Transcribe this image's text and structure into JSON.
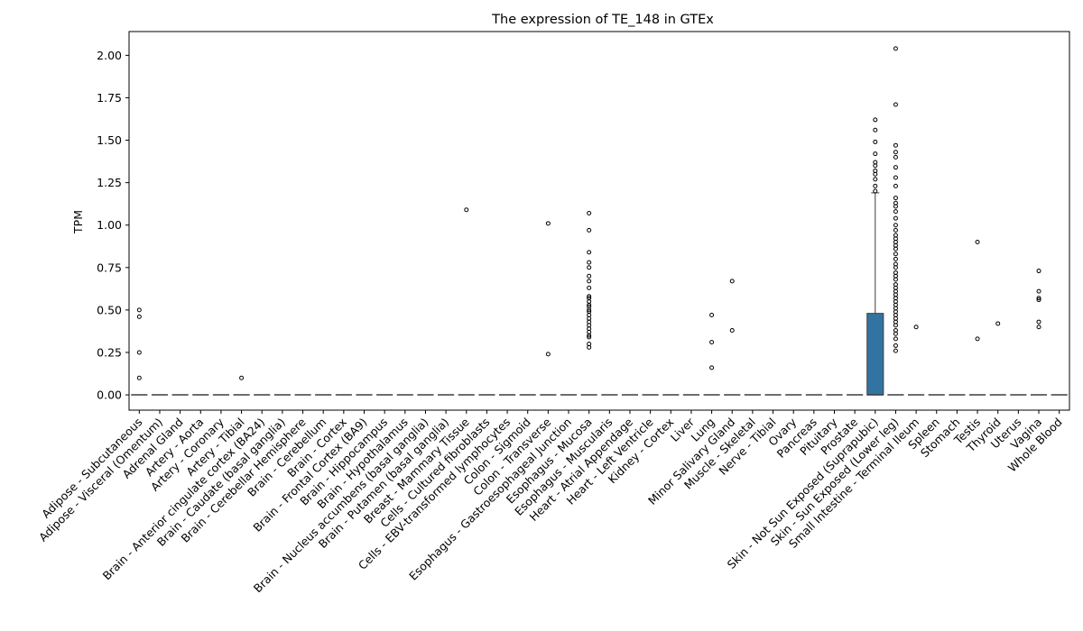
{
  "chart_data": {
    "type": "box",
    "title": "The expression of TE_148 in GTEx",
    "xlabel": "",
    "ylabel": "TPM",
    "ylim": [
      -0.09,
      2.14
    ],
    "yticks": [
      "0.00",
      "0.25",
      "0.50",
      "0.75",
      "1.00",
      "1.25",
      "1.50",
      "1.75",
      "2.00"
    ],
    "ytick_values": [
      0,
      0.25,
      0.5,
      0.75,
      1.0,
      1.25,
      1.5,
      1.75,
      2.0
    ],
    "box_color": "#3274a1",
    "categories": [
      "Adipose - Subcutaneous",
      "Adipose - Visceral (Omentum)",
      "Adrenal Gland",
      "Artery - Aorta",
      "Artery - Coronary",
      "Artery - Tibial",
      "Brain - Anterior cingulate cortex (BA24)",
      "Brain - Caudate (basal ganglia)",
      "Brain - Cerebellar Hemisphere",
      "Brain - Cerebellum",
      "Brain - Cortex",
      "Brain - Frontal Cortex (BA9)",
      "Brain - Hippocampus",
      "Brain - Hypothalamus",
      "Brain - Nucleus accumbens (basal ganglia)",
      "Brain - Putamen (basal ganglia)",
      "Breast - Mammary Tissue",
      "Cells - Cultured fibroblasts",
      "Cells - EBV-transformed lymphocytes",
      "Colon - Sigmoid",
      "Colon - Transverse",
      "Esophagus - Gastroesophageal Junction",
      "Esophagus - Mucosa",
      "Esophagus - Muscularis",
      "Heart - Atrial Appendage",
      "Heart - Left Ventricle",
      "Kidney - Cortex",
      "Liver",
      "Lung",
      "Minor Salivary Gland",
      "Muscle - Skeletal",
      "Nerve - Tibial",
      "Ovary",
      "Pancreas",
      "Pituitary",
      "Prostate",
      "Skin - Not Sun Exposed (Suprapubic)",
      "Skin - Sun Exposed (Lower leg)",
      "Small Intestine - Terminal Ileum",
      "Spleen",
      "Stomach",
      "Testis",
      "Thyroid",
      "Uterus",
      "Vagina",
      "Whole Blood"
    ],
    "boxes": [
      {
        "q1": 0,
        "median": 0,
        "q3": 0,
        "whisker_low": 0,
        "whisker_high": 0,
        "outliers": [
          0.1,
          0.25,
          0.46,
          0.5
        ]
      },
      {
        "q1": 0,
        "median": 0,
        "q3": 0,
        "whisker_low": 0,
        "whisker_high": 0,
        "outliers": []
      },
      {
        "q1": 0,
        "median": 0,
        "q3": 0,
        "whisker_low": 0,
        "whisker_high": 0,
        "outliers": []
      },
      {
        "q1": 0,
        "median": 0,
        "q3": 0,
        "whisker_low": 0,
        "whisker_high": 0,
        "outliers": []
      },
      {
        "q1": 0,
        "median": 0,
        "q3": 0,
        "whisker_low": 0,
        "whisker_high": 0,
        "outliers": []
      },
      {
        "q1": 0,
        "median": 0,
        "q3": 0,
        "whisker_low": 0,
        "whisker_high": 0,
        "outliers": [
          0.1
        ]
      },
      {
        "q1": 0,
        "median": 0,
        "q3": 0,
        "whisker_low": 0,
        "whisker_high": 0,
        "outliers": []
      },
      {
        "q1": 0,
        "median": 0,
        "q3": 0,
        "whisker_low": 0,
        "whisker_high": 0,
        "outliers": []
      },
      {
        "q1": 0,
        "median": 0,
        "q3": 0,
        "whisker_low": 0,
        "whisker_high": 0,
        "outliers": []
      },
      {
        "q1": 0,
        "median": 0,
        "q3": 0,
        "whisker_low": 0,
        "whisker_high": 0,
        "outliers": []
      },
      {
        "q1": 0,
        "median": 0,
        "q3": 0,
        "whisker_low": 0,
        "whisker_high": 0,
        "outliers": []
      },
      {
        "q1": 0,
        "median": 0,
        "q3": 0,
        "whisker_low": 0,
        "whisker_high": 0,
        "outliers": []
      },
      {
        "q1": 0,
        "median": 0,
        "q3": 0,
        "whisker_low": 0,
        "whisker_high": 0,
        "outliers": []
      },
      {
        "q1": 0,
        "median": 0,
        "q3": 0,
        "whisker_low": 0,
        "whisker_high": 0,
        "outliers": []
      },
      {
        "q1": 0,
        "median": 0,
        "q3": 0,
        "whisker_low": 0,
        "whisker_high": 0,
        "outliers": []
      },
      {
        "q1": 0,
        "median": 0,
        "q3": 0,
        "whisker_low": 0,
        "whisker_high": 0,
        "outliers": []
      },
      {
        "q1": 0,
        "median": 0,
        "q3": 0,
        "whisker_low": 0,
        "whisker_high": 0,
        "outliers": [
          1.09
        ]
      },
      {
        "q1": 0,
        "median": 0,
        "q3": 0,
        "whisker_low": 0,
        "whisker_high": 0,
        "outliers": []
      },
      {
        "q1": 0,
        "median": 0,
        "q3": 0,
        "whisker_low": 0,
        "whisker_high": 0,
        "outliers": []
      },
      {
        "q1": 0,
        "median": 0,
        "q3": 0,
        "whisker_low": 0,
        "whisker_high": 0,
        "outliers": []
      },
      {
        "q1": 0,
        "median": 0,
        "q3": 0,
        "whisker_low": 0,
        "whisker_high": 0,
        "outliers": [
          0.24,
          1.01
        ]
      },
      {
        "q1": 0,
        "median": 0,
        "q3": 0,
        "whisker_low": 0,
        "whisker_high": 0,
        "outliers": []
      },
      {
        "q1": 0,
        "median": 0,
        "q3": 0,
        "whisker_low": 0,
        "whisker_high": 0,
        "outliers": [
          0.28,
          0.3,
          0.34,
          0.35,
          0.37,
          0.39,
          0.41,
          0.43,
          0.45,
          0.47,
          0.49,
          0.5,
          0.52,
          0.53,
          0.55,
          0.57,
          0.58,
          0.63,
          0.67,
          0.7,
          0.75,
          0.78,
          0.84,
          0.97,
          1.07
        ]
      },
      {
        "q1": 0,
        "median": 0,
        "q3": 0,
        "whisker_low": 0,
        "whisker_high": 0,
        "outliers": []
      },
      {
        "q1": 0,
        "median": 0,
        "q3": 0,
        "whisker_low": 0,
        "whisker_high": 0,
        "outliers": []
      },
      {
        "q1": 0,
        "median": 0,
        "q3": 0,
        "whisker_low": 0,
        "whisker_high": 0,
        "outliers": []
      },
      {
        "q1": 0,
        "median": 0,
        "q3": 0,
        "whisker_low": 0,
        "whisker_high": 0,
        "outliers": []
      },
      {
        "q1": 0,
        "median": 0,
        "q3": 0,
        "whisker_low": 0,
        "whisker_high": 0,
        "outliers": []
      },
      {
        "q1": 0,
        "median": 0,
        "q3": 0,
        "whisker_low": 0,
        "whisker_high": 0,
        "outliers": [
          0.16,
          0.31,
          0.47
        ]
      },
      {
        "q1": 0,
        "median": 0,
        "q3": 0,
        "whisker_low": 0,
        "whisker_high": 0,
        "outliers": [
          0.38,
          0.67
        ]
      },
      {
        "q1": 0,
        "median": 0,
        "q3": 0,
        "whisker_low": 0,
        "whisker_high": 0,
        "outliers": []
      },
      {
        "q1": 0,
        "median": 0,
        "q3": 0,
        "whisker_low": 0,
        "whisker_high": 0,
        "outliers": []
      },
      {
        "q1": 0,
        "median": 0,
        "q3": 0,
        "whisker_low": 0,
        "whisker_high": 0,
        "outliers": []
      },
      {
        "q1": 0,
        "median": 0,
        "q3": 0,
        "whisker_low": 0,
        "whisker_high": 0,
        "outliers": []
      },
      {
        "q1": 0,
        "median": 0,
        "q3": 0,
        "whisker_low": 0,
        "whisker_high": 0,
        "outliers": []
      },
      {
        "q1": 0,
        "median": 0,
        "q3": 0,
        "whisker_low": 0,
        "whisker_high": 0,
        "outliers": []
      },
      {
        "q1": 0,
        "median": 0,
        "q3": 0.48,
        "whisker_low": 0,
        "whisker_high": 1.19,
        "outliers": [
          1.2,
          1.23,
          1.27,
          1.3,
          1.32,
          1.35,
          1.37,
          1.42,
          1.49,
          1.56,
          1.62
        ]
      },
      {
        "q1": 0,
        "median": 0,
        "q3": 0,
        "whisker_low": 0,
        "whisker_high": 0,
        "outliers": [
          0.26,
          0.29,
          0.33,
          0.36,
          0.38,
          0.41,
          0.43,
          0.45,
          0.47,
          0.49,
          0.51,
          0.53,
          0.55,
          0.57,
          0.59,
          0.61,
          0.63,
          0.65,
          0.68,
          0.7,
          0.72,
          0.75,
          0.77,
          0.8,
          0.83,
          0.86,
          0.88,
          0.9,
          0.92,
          0.94,
          0.97,
          1.0,
          1.04,
          1.08,
          1.11,
          1.13,
          1.16,
          1.23,
          1.28,
          1.34,
          1.4,
          1.43,
          1.47,
          1.71,
          2.04
        ]
      },
      {
        "q1": 0,
        "median": 0,
        "q3": 0,
        "whisker_low": 0,
        "whisker_high": 0,
        "outliers": [
          0.4
        ]
      },
      {
        "q1": 0,
        "median": 0,
        "q3": 0,
        "whisker_low": 0,
        "whisker_high": 0,
        "outliers": []
      },
      {
        "q1": 0,
        "median": 0,
        "q3": 0,
        "whisker_low": 0,
        "whisker_high": 0,
        "outliers": []
      },
      {
        "q1": 0,
        "median": 0,
        "q3": 0,
        "whisker_low": 0,
        "whisker_high": 0,
        "outliers": [
          0.33,
          0.9
        ]
      },
      {
        "q1": 0,
        "median": 0,
        "q3": 0,
        "whisker_low": 0,
        "whisker_high": 0,
        "outliers": [
          0.42
        ]
      },
      {
        "q1": 0,
        "median": 0,
        "q3": 0,
        "whisker_low": 0,
        "whisker_high": 0,
        "outliers": []
      },
      {
        "q1": 0,
        "median": 0,
        "q3": 0,
        "whisker_low": 0,
        "whisker_high": 0,
        "outliers": [
          0.4,
          0.43,
          0.56,
          0.57,
          0.61,
          0.73
        ]
      },
      {
        "q1": 0,
        "median": 0,
        "q3": 0,
        "whisker_low": 0,
        "whisker_high": 0,
        "outliers": []
      }
    ]
  }
}
